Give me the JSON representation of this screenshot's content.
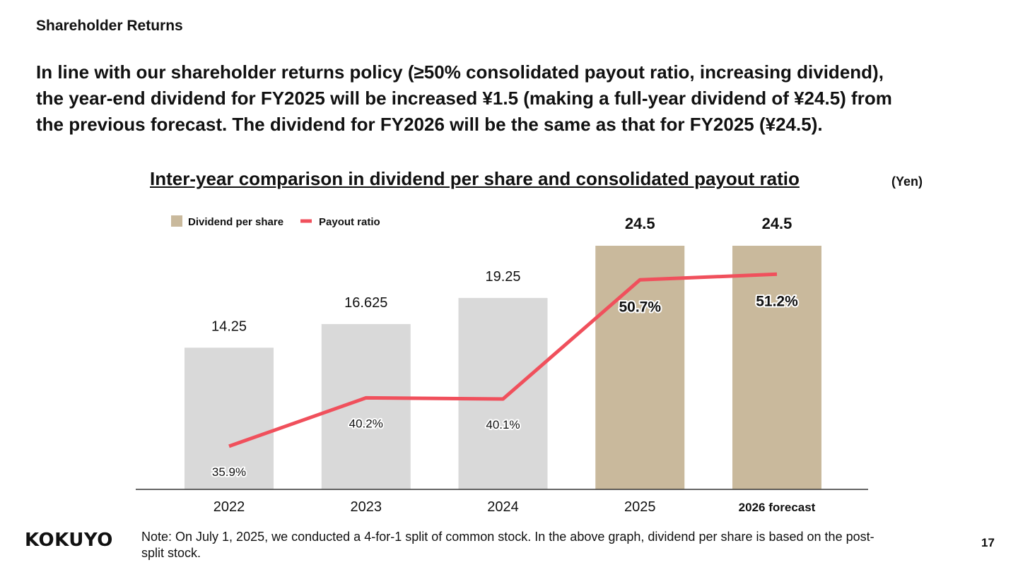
{
  "page": {
    "section_title": "Shareholder Returns",
    "headline_lines": [
      "In line with our shareholder returns policy (≥50% consolidated payout ratio, increasing dividend),",
      "the year-end dividend for FY2025 will be increased ¥1.5 (making a full-year dividend of ¥24.5) from",
      "the previous forecast. The dividend for FY2026 will be the same as that for FY2025 (¥24.5)."
    ],
    "unit": "(Yen)",
    "logo": "KOKUYO",
    "note": "Note: On July 1, 2025, we conducted a 4-for-1 split of common stock. In the above graph, dividend per share is based on the post-split stock.",
    "page_number": "17"
  },
  "chart_data": {
    "type": "bar",
    "title": "Inter-year comparison in dividend per share and consolidated payout ratio",
    "categories": [
      "2022",
      "2023",
      "2024",
      "2025",
      "2026 forecast"
    ],
    "series": [
      {
        "name": "Dividend per share",
        "type": "bar",
        "values": [
          14.25,
          16.625,
          19.25,
          24.5,
          24.5
        ],
        "labels": [
          "14.25",
          "16.625",
          "19.25",
          "24.5",
          "24.5"
        ]
      },
      {
        "name": "Payout ratio",
        "type": "line",
        "values": [
          35.9,
          40.2,
          40.1,
          50.7,
          51.2
        ],
        "labels": [
          "35.9%",
          "40.2%",
          "40.1%",
          "50.7%",
          "51.2%"
        ]
      }
    ],
    "legend_position": "top-left",
    "colors": {
      "bar_past": "#d9d9d9",
      "bar_highlight": "#c9b99c",
      "line": "#f0505c",
      "axis": "#333333"
    },
    "highlight_categories": [
      "2025",
      "2026 forecast"
    ],
    "y_axis_visible": false,
    "grid": false
  }
}
